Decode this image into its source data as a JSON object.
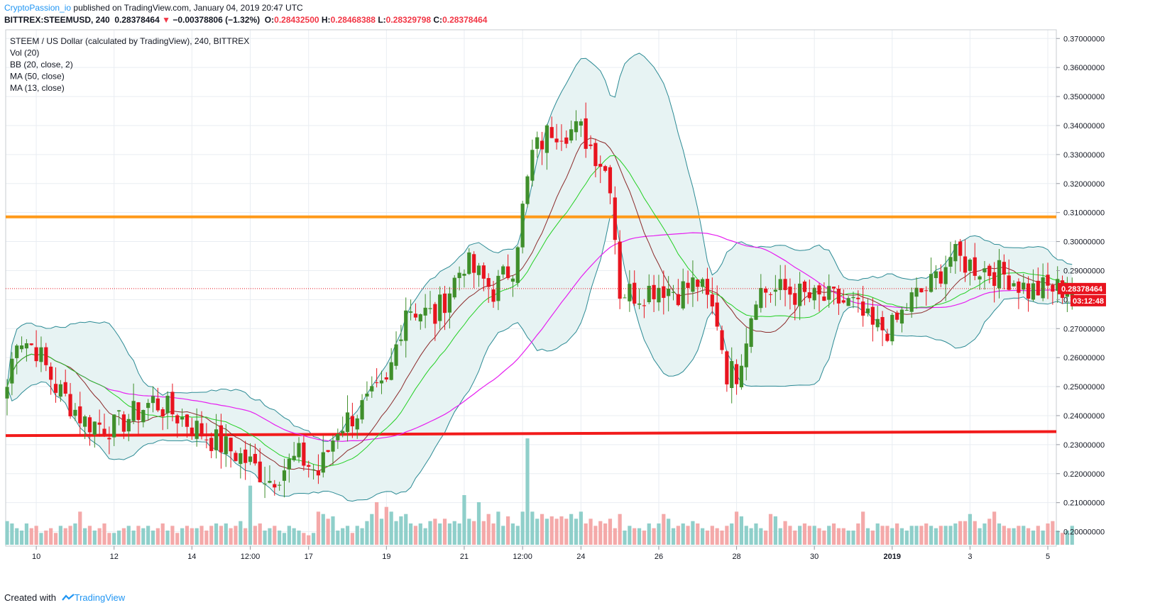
{
  "header": {
    "author": "CryptoPassion_io",
    "published": "published on TradingView.com, January 04, 2019 20:47 UTC",
    "symbol": "BITTREX:STEEMUSD, 240",
    "last": "0.28378464",
    "arrow": "▼",
    "change": "−0.00378806 (−1.32%)",
    "o_label": "O:",
    "o": "0.28432500",
    "h_label": "H:",
    "h": "0.28468388",
    "l_label": "L:",
    "l": "0.28329798",
    "c_label": "C:",
    "c": "0.28378464"
  },
  "legend": [
    "STEEM / US Dollar (calculated by TradingView), 240, BITTREX",
    "Vol (20)",
    "BB (20, close, 2)",
    "MA (50, close)",
    "MA (13, close)"
  ],
  "price_badge": "0.28378464",
  "countdown_badge": "03:12:48",
  "footer": {
    "created": "Created with",
    "brand": "TradingView"
  },
  "colors": {
    "up": "#3f8f2b",
    "down": "#e8141f",
    "bb": "#2b8a94",
    "bb_fill": "#e7f3f3",
    "ma50": "#e61ef0",
    "ma13": "#8b2a2a",
    "bb_basis": "#22d022",
    "hline_orange": "#ff9a1a",
    "hline_red": "#f21b1b",
    "vol_up": "#8fcfca",
    "vol_down": "#f4a9a9"
  },
  "chart_data": {
    "type": "candlestick",
    "timeframe": "240",
    "ylim": [
      0.195,
      0.373
    ],
    "y_ticks": [
      "0.37000000",
      "0.36000000",
      "0.35000000",
      "0.34000000",
      "0.33000000",
      "0.32000000",
      "0.31000000",
      "0.30000000",
      "0.29000000",
      "0.28000000",
      "0.27000000",
      "0.26000000",
      "0.25000000",
      "0.24000000",
      "0.23000000",
      "0.22000000",
      "0.21000000",
      "0.20000000"
    ],
    "y_tick_values": [
      0.37,
      0.36,
      0.35,
      0.34,
      0.33,
      0.32,
      0.31,
      0.3,
      0.29,
      0.28,
      0.27,
      0.26,
      0.25,
      0.24,
      0.23,
      0.22,
      0.21,
      0.2
    ],
    "x_ticks": [
      {
        "label": "10",
        "bar": 6
      },
      {
        "label": "12",
        "bar": 22
      },
      {
        "label": "14",
        "bar": 38
      },
      {
        "label": "12:00",
        "bar": 50
      },
      {
        "label": "17",
        "bar": 62
      },
      {
        "label": "19",
        "bar": 78
      },
      {
        "label": "21",
        "bar": 94
      },
      {
        "label": "12:00",
        "bar": 106
      },
      {
        "label": "24",
        "bar": 118
      },
      {
        "label": "26",
        "bar": 134
      },
      {
        "label": "28",
        "bar": 150
      },
      {
        "label": "30",
        "bar": 166
      },
      {
        "label": "2019",
        "bar": 182
      },
      {
        "label": "3",
        "bar": 198
      },
      {
        "label": "5",
        "bar": 214
      }
    ],
    "horizontal_lines": [
      {
        "name": "resistance",
        "value": 0.3085
      },
      {
        "name": "support",
        "value_start": 0.2331,
        "value_end": 0.2345
      }
    ],
    "last_price": 0.28378464,
    "volume_pct": [
      10,
      9,
      7,
      6,
      9,
      7,
      8,
      5,
      6,
      7,
      5,
      8,
      7,
      8,
      9,
      14,
      7,
      8,
      6,
      7,
      9,
      5,
      5,
      6,
      7,
      8,
      6,
      8,
      7,
      8,
      6,
      7,
      9,
      6,
      8,
      5,
      7,
      8,
      7,
      7,
      8,
      6,
      8,
      9,
      8,
      9,
      7,
      8,
      10,
      7,
      25,
      8,
      9,
      6,
      7,
      8,
      6,
      5,
      8,
      7,
      6,
      5,
      4,
      5,
      14,
      13,
      11,
      12,
      6,
      7,
      8,
      5,
      8,
      7,
      10,
      13,
      18,
      11,
      16,
      14,
      10,
      12,
      13,
      9,
      8,
      9,
      7,
      10,
      11,
      9,
      11,
      9,
      10,
      9,
      21,
      11,
      10,
      18,
      10,
      13,
      9,
      14,
      8,
      12,
      9,
      8,
      14,
      45,
      14,
      11,
      13,
      11,
      12,
      11,
      12,
      11,
      13,
      11,
      14,
      9,
      11,
      8,
      10,
      9,
      11,
      7,
      13,
      6,
      8,
      7,
      7,
      6,
      9,
      7,
      9,
      13,
      11,
      7,
      8,
      9,
      8,
      10,
      9,
      7,
      6,
      8,
      7,
      6,
      8,
      9,
      14,
      12,
      8,
      7,
      9,
      7,
      6,
      13,
      12,
      7,
      10,
      8,
      6,
      8,
      9,
      8,
      8,
      7,
      6,
      8,
      9,
      7,
      7,
      6,
      6,
      9,
      14,
      7,
      6,
      9,
      8,
      8,
      7,
      9,
      7,
      6,
      8,
      8,
      8,
      9,
      8,
      7,
      8,
      8,
      8,
      9,
      10,
      10,
      13,
      10,
      7,
      9,
      11,
      14,
      9,
      8,
      7,
      7,
      8,
      8,
      7,
      6,
      8,
      6,
      9,
      10,
      6,
      5,
      6,
      8,
      9,
      7,
      9,
      6,
      8,
      5,
      7,
      8,
      7,
      7
    ]
  }
}
